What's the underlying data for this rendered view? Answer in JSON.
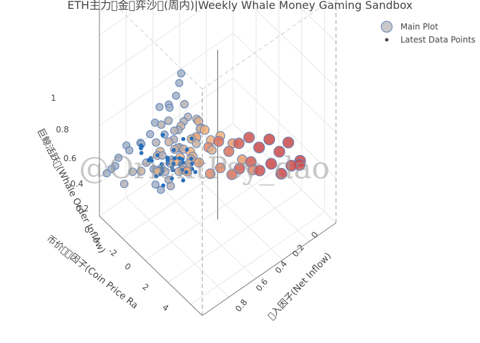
{
  "chart_data": {
    "type": "scatter3d",
    "title": "ETH主力\u0000金\u0000弈沙\u0000(周内)|Weekly Whale Money Gaming Sandbox",
    "watermark": "@OrientPsy_dao",
    "x_axis": {
      "label": "\u0000入因子(Net Inflow)",
      "range": [
        0,
        1
      ],
      "ticks": [
        "0",
        "0.2",
        "0.4",
        "0.6",
        "0.8"
      ]
    },
    "y_axis": {
      "label": "币价\u0000\u0000因子(Coin Price Ra",
      "range": [
        -4,
        5
      ],
      "ticks": [
        "-4",
        "-2",
        "0",
        "2",
        "4"
      ]
    },
    "z_axis": {
      "label": "巨鲸活跃\u0000(Whale Order Inflow)",
      "range": [
        0,
        1
      ],
      "ticks": [
        "0",
        "0.2",
        "0.4",
        "0.6",
        "0.8",
        "1"
      ]
    },
    "legend": {
      "placement": "top-right",
      "items": [
        "Main Plot",
        "Latest Data Points"
      ]
    },
    "colors": {
      "main_low": "#8fb0d8",
      "main_mid": "#f0b07a",
      "main_high": "#c94a4a",
      "latest": "#2a6fbd",
      "marker_line": "#5b7fb8"
    },
    "series": [
      {
        "name": "Main Plot",
        "points": [
          [
            0.02,
            -3.6,
            0.2,
            0.1
          ],
          [
            0.05,
            -3.2,
            0.24,
            0.1
          ],
          [
            0.08,
            -3.9,
            0.18,
            0.1
          ],
          [
            0.04,
            -2.8,
            0.3,
            0.1
          ],
          [
            0.1,
            -3.0,
            0.15,
            0.2
          ],
          [
            0.12,
            -2.5,
            0.22,
            0.2
          ],
          [
            0.15,
            -3.4,
            0.28,
            0.1
          ],
          [
            0.07,
            -2.2,
            0.35,
            0.1
          ],
          [
            0.18,
            -2.0,
            0.26,
            0.2
          ],
          [
            0.2,
            -2.7,
            0.18,
            0.3
          ],
          [
            0.22,
            -1.5,
            0.3,
            0.3
          ],
          [
            0.25,
            -1.8,
            0.2,
            0.4
          ],
          [
            0.28,
            -1.2,
            0.35,
            0.3
          ],
          [
            0.3,
            -2.2,
            0.25,
            0.4
          ],
          [
            0.33,
            -0.8,
            0.28,
            0.5
          ],
          [
            0.35,
            -1.5,
            0.22,
            0.5
          ],
          [
            0.38,
            -0.5,
            0.3,
            0.5
          ],
          [
            0.4,
            -1.0,
            0.18,
            0.6
          ],
          [
            0.42,
            -0.2,
            0.25,
            0.6
          ],
          [
            0.45,
            -0.8,
            0.32,
            0.6
          ],
          [
            0.47,
            0.2,
            0.2,
            0.7
          ],
          [
            0.5,
            -0.3,
            0.28,
            0.7
          ],
          [
            0.52,
            0.5,
            0.22,
            0.7
          ],
          [
            0.55,
            0.0,
            0.3,
            0.8
          ],
          [
            0.58,
            0.8,
            0.18,
            0.8
          ],
          [
            0.6,
            0.3,
            0.25,
            0.8
          ],
          [
            0.62,
            1.0,
            0.2,
            0.9
          ],
          [
            0.65,
            0.6,
            0.28,
            0.9
          ],
          [
            0.68,
            1.3,
            0.22,
            0.9
          ],
          [
            0.7,
            0.9,
            0.3,
            0.95
          ],
          [
            0.72,
            1.6,
            0.18,
            0.95
          ],
          [
            0.75,
            1.2,
            0.25,
            1.0
          ],
          [
            0.78,
            1.9,
            0.2,
            1.0
          ],
          [
            0.8,
            1.5,
            0.28,
            1.0
          ],
          [
            0.83,
            2.2,
            0.15,
            1.0
          ],
          [
            0.85,
            1.8,
            0.22,
            1.0
          ],
          [
            0.88,
            2.5,
            0.18,
            1.0
          ],
          [
            0.9,
            2.0,
            0.25,
            1.0
          ],
          [
            0.92,
            2.8,
            0.2,
            1.0
          ],
          [
            0.95,
            2.4,
            0.15,
            1.0
          ],
          [
            0.05,
            -1.0,
            0.45,
            0.1
          ],
          [
            0.08,
            -0.5,
            0.5,
            0.1
          ],
          [
            0.1,
            -1.5,
            0.4,
            0.1
          ],
          [
            0.12,
            0.0,
            0.55,
            0.2
          ],
          [
            0.15,
            -0.8,
            0.42,
            0.2
          ],
          [
            0.18,
            0.4,
            0.48,
            0.2
          ],
          [
            0.2,
            -0.3,
            0.52,
            0.2
          ],
          [
            0.22,
            0.8,
            0.44,
            0.3
          ],
          [
            0.25,
            0.2,
            0.5,
            0.3
          ],
          [
            0.28,
            1.2,
            0.46,
            0.3
          ],
          [
            0.03,
            0.5,
            0.62,
            0.1
          ],
          [
            0.06,
            1.0,
            0.58,
            0.1
          ],
          [
            0.09,
            0.2,
            0.65,
            0.1
          ],
          [
            0.12,
            1.5,
            0.6,
            0.2
          ],
          [
            0.15,
            0.8,
            0.55,
            0.2
          ],
          [
            0.04,
            1.6,
            0.75,
            0.1
          ],
          [
            0.06,
            2.0,
            0.8,
            0.1
          ],
          [
            0.05,
            2.4,
            0.88,
            0.1
          ],
          [
            0.03,
            2.8,
            0.95,
            0.1
          ],
          [
            0.08,
            1.2,
            0.7,
            0.1
          ],
          [
            0.1,
            2.2,
            0.68,
            0.2
          ],
          [
            0.14,
            1.8,
            0.72,
            0.2
          ],
          [
            0.2,
            1.4,
            0.62,
            0.2
          ],
          [
            0.24,
            2.0,
            0.58,
            0.3
          ],
          [
            0.3,
            1.0,
            0.55,
            0.3
          ],
          [
            0.32,
            0.3,
            0.42,
            0.4
          ],
          [
            0.35,
            0.8,
            0.48,
            0.4
          ],
          [
            0.38,
            1.4,
            0.4,
            0.4
          ],
          [
            0.4,
            0.0,
            0.45,
            0.4
          ],
          [
            0.44,
            0.6,
            0.38,
            0.5
          ],
          [
            0.46,
            1.2,
            0.42,
            0.5
          ],
          [
            0.48,
            -0.4,
            0.36,
            0.5
          ],
          [
            0.5,
            1.8,
            0.4,
            0.6
          ],
          [
            0.52,
            2.4,
            0.35,
            0.6
          ],
          [
            0.55,
            3.0,
            0.32,
            0.7
          ],
          [
            0.3,
            -0.5,
            0.35,
            0.4
          ],
          [
            0.26,
            -0.2,
            0.38,
            0.3
          ],
          [
            0.22,
            0.0,
            0.4,
            0.3
          ],
          [
            0.18,
            -0.6,
            0.36,
            0.2
          ],
          [
            0.14,
            -0.2,
            0.34,
            0.2
          ],
          [
            0.1,
            0.6,
            0.38,
            0.2
          ],
          [
            0.06,
            0.2,
            0.32,
            0.1
          ],
          [
            0.16,
            0.2,
            0.3,
            0.2
          ],
          [
            0.24,
            0.4,
            0.32,
            0.3
          ],
          [
            0.28,
            0.0,
            0.3,
            0.3
          ],
          [
            0.2,
            0.6,
            0.34,
            0.3
          ],
          [
            0.26,
            0.8,
            0.36,
            0.3
          ],
          [
            0.34,
            0.2,
            0.33,
            0.4
          ],
          [
            0.36,
            -0.2,
            0.29,
            0.4
          ],
          [
            0.12,
            -0.4,
            0.33,
            0.2
          ],
          [
            0.08,
            -0.2,
            0.36,
            0.1
          ],
          [
            0.1,
            0.2,
            0.28,
            0.1
          ],
          [
            0.14,
            0.6,
            0.3,
            0.2
          ],
          [
            0.18,
            0.2,
            0.38,
            0.2
          ],
          [
            0.22,
            -0.4,
            0.32,
            0.3
          ]
        ]
      },
      {
        "name": "Latest Data Points",
        "points": [
          [
            0.1,
            -0.2,
            0.32
          ],
          [
            0.12,
            0.1,
            0.35
          ],
          [
            0.15,
            -0.4,
            0.3
          ],
          [
            0.18,
            0.3,
            0.34
          ],
          [
            0.2,
            0.0,
            0.28
          ],
          [
            0.22,
            -0.6,
            0.31
          ],
          [
            0.25,
            0.4,
            0.27
          ],
          [
            0.14,
            0.8,
            0.38
          ],
          [
            0.08,
            0.5,
            0.4
          ],
          [
            0.16,
            -0.8,
            0.36
          ],
          [
            0.05,
            0.0,
            0.42
          ],
          [
            0.28,
            -0.2,
            0.3
          ],
          [
            0.11,
            1.2,
            0.44
          ],
          [
            0.19,
            1.0,
            0.37
          ],
          [
            0.24,
            0.8,
            0.33
          ],
          [
            0.07,
            -0.5,
            0.39
          ],
          [
            0.13,
            -1.2,
            0.33
          ],
          [
            0.21,
            -1.0,
            0.29
          ],
          [
            0.17,
            0.6,
            0.41
          ],
          [
            0.09,
            0.9,
            0.46
          ],
          [
            0.04,
            1.5,
            0.5
          ],
          [
            0.06,
            1.8,
            0.55
          ],
          [
            0.03,
            1.2,
            0.6
          ],
          [
            0.12,
            1.6,
            0.48
          ],
          [
            0.15,
            1.9,
            0.52
          ],
          [
            0.26,
            0.2,
            0.35
          ],
          [
            0.3,
            0.6,
            0.31
          ],
          [
            0.32,
            -0.4,
            0.28
          ],
          [
            0.27,
            -0.8,
            0.26
          ],
          [
            0.23,
            1.4,
            0.4
          ],
          [
            0.1,
            -1.5,
            0.36
          ],
          [
            0.06,
            -1.0,
            0.43
          ],
          [
            0.02,
            -0.6,
            0.47
          ],
          [
            0.16,
            2.2,
            0.58
          ],
          [
            0.08,
            2.4,
            0.62
          ],
          [
            0.18,
            -1.6,
            0.3
          ],
          [
            0.14,
            -2.0,
            0.34
          ],
          [
            0.2,
            1.7,
            0.45
          ],
          [
            0.29,
            1.0,
            0.32
          ],
          [
            0.11,
            0.3,
            0.3
          ]
        ]
      }
    ]
  }
}
